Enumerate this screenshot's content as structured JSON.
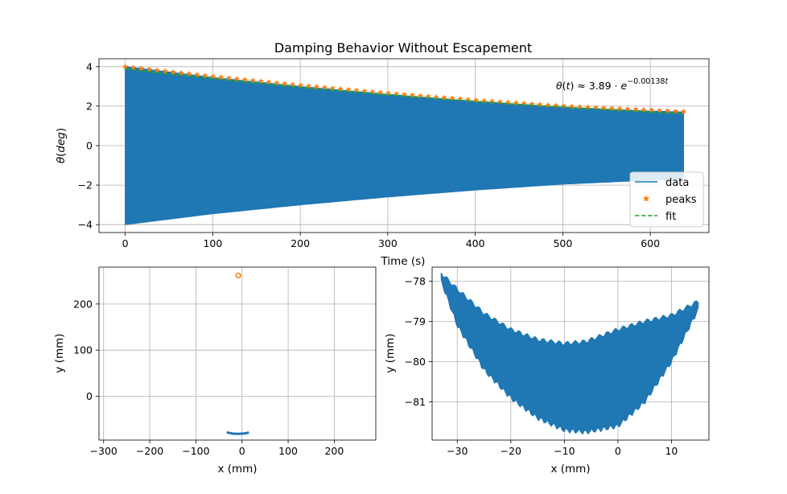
{
  "chart_data": [
    {
      "type": "line",
      "title": "Damping Behavior Without Escapement",
      "xlabel": "Time (s)",
      "ylabel": "θ(deg)",
      "xlim": [
        -30,
        667
      ],
      "ylim": [
        -4.4,
        4.4
      ],
      "xticks": [
        0,
        100,
        200,
        300,
        400,
        500,
        600
      ],
      "yticks": [
        -4,
        -2,
        0,
        2,
        4
      ],
      "grid": true,
      "legend": {
        "placement": "lower-right",
        "entries": [
          "data",
          "peaks",
          "fit"
        ]
      },
      "annotation": "θ(t) ≈ 3.89 · e^(−0.00138t)",
      "fit": {
        "amplitude": 3.89,
        "decay_rate": 0.00138
      },
      "series": [
        {
          "name": "data",
          "kind": "oscillation-envelope",
          "color": "#1f77b4",
          "x": [
            0,
            100,
            200,
            300,
            400,
            500,
            600,
            638
          ],
          "upper": [
            4.0,
            3.45,
            3.0,
            2.6,
            2.25,
            1.95,
            1.75,
            1.7
          ],
          "lower": [
            -4.0,
            -3.45,
            -3.0,
            -2.6,
            -2.25,
            -1.95,
            -1.75,
            -1.7
          ]
        },
        {
          "name": "peaks",
          "kind": "markers",
          "color": "#ff7f0e",
          "x": [
            0,
            100,
            200,
            300,
            400,
            500,
            600,
            638
          ],
          "y": [
            4.0,
            3.5,
            3.05,
            2.65,
            2.3,
            2.0,
            1.8,
            1.72
          ]
        },
        {
          "name": "fit",
          "kind": "dashed",
          "color": "#2ca02c",
          "x": [
            0,
            100,
            200,
            300,
            400,
            500,
            600,
            638
          ],
          "y": [
            3.89,
            3.39,
            2.95,
            2.57,
            2.24,
            1.95,
            1.7,
            1.61
          ]
        }
      ]
    },
    {
      "type": "scatter",
      "xlabel": "x (mm)",
      "ylabel": "y (mm)",
      "xlim": [
        -310,
        290
      ],
      "ylim": [
        -95,
        280
      ],
      "xticks": [
        -300,
        -200,
        -100,
        0,
        100,
        200
      ],
      "yticks": [
        0,
        100,
        200
      ],
      "grid": true,
      "series": [
        {
          "name": "trajectory",
          "color": "#1f77b4",
          "x": [
            -33,
            -20,
            -7,
            5,
            15
          ],
          "y": [
            -78,
            -81,
            -81.5,
            -80.5,
            -78.6
          ]
        },
        {
          "name": "pivot",
          "color": "#ff7f0e",
          "marker": "circle-open",
          "x": [
            -8
          ],
          "y": [
            262
          ]
        }
      ]
    },
    {
      "type": "line",
      "xlabel": "x (mm)",
      "ylabel": "y (mm)",
      "xlim": [
        -34.7,
        17
      ],
      "ylim": [
        -81.95,
        -77.65
      ],
      "xticks": [
        -30,
        -20,
        -10,
        0,
        10
      ],
      "yticks": [
        -81,
        -80,
        -79,
        -78
      ],
      "grid": true,
      "series": [
        {
          "name": "trajectory",
          "color": "#1f77b4",
          "x": [
            -33,
            -30,
            -25,
            -20,
            -15,
            -10,
            -6,
            0,
            5,
            10,
            15
          ],
          "upper": [
            -77.8,
            -78.2,
            -78.8,
            -79.2,
            -79.45,
            -79.55,
            -79.5,
            -79.2,
            -79.0,
            -78.85,
            -78.5
          ],
          "lower": [
            -78.0,
            -79.1,
            -80.2,
            -80.9,
            -81.4,
            -81.7,
            -81.75,
            -81.6,
            -81.0,
            -80.0,
            -78.7
          ]
        }
      ]
    }
  ]
}
